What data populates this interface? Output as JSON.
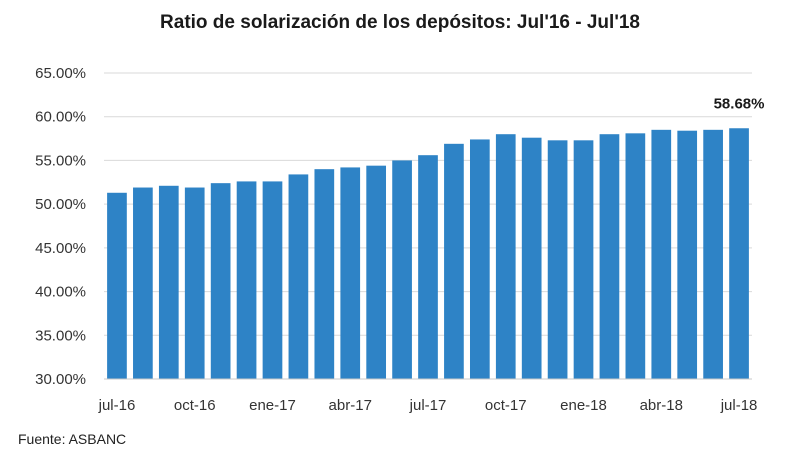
{
  "chart_data": {
    "type": "bar",
    "title": "Ratio de solarización de los depósitos: Jul'16 - Jul'18",
    "xlabel": "",
    "ylabel": "",
    "ylim": [
      30,
      65
    ],
    "yticks": [
      "30.00%",
      "35.00%",
      "40.00%",
      "45.00%",
      "50.00%",
      "55.00%",
      "60.00%",
      "65.00%"
    ],
    "ytick_values": [
      30,
      35,
      40,
      45,
      50,
      55,
      60,
      65
    ],
    "categories": [
      "jul-16",
      "ago-16",
      "sep-16",
      "oct-16",
      "nov-16",
      "dic-16",
      "ene-17",
      "feb-17",
      "mar-17",
      "abr-17",
      "may-17",
      "jun-17",
      "jul-17",
      "ago-17",
      "sep-17",
      "oct-17",
      "nov-17",
      "dic-17",
      "ene-18",
      "feb-18",
      "mar-18",
      "abr-18",
      "may-18",
      "jun-18",
      "jul-18"
    ],
    "visible_xtick_labels": [
      "jul-16",
      "oct-16",
      "ene-17",
      "abr-17",
      "jul-17",
      "oct-17",
      "ene-18",
      "abr-18",
      "jul-18"
    ],
    "values": [
      51.3,
      51.9,
      52.1,
      51.9,
      52.4,
      52.6,
      52.6,
      53.4,
      54.0,
      54.2,
      54.4,
      55.0,
      55.6,
      56.9,
      57.4,
      58.0,
      57.6,
      57.3,
      57.3,
      58.0,
      58.1,
      58.5,
      58.4,
      58.5,
      58.68
    ],
    "data_labels": [
      {
        "category": "jul-18",
        "text": "58.68%"
      }
    ],
    "bar_color": "#2e83c6",
    "grid": true,
    "legend": "none"
  },
  "source_text": "Fuente: ASBANC"
}
